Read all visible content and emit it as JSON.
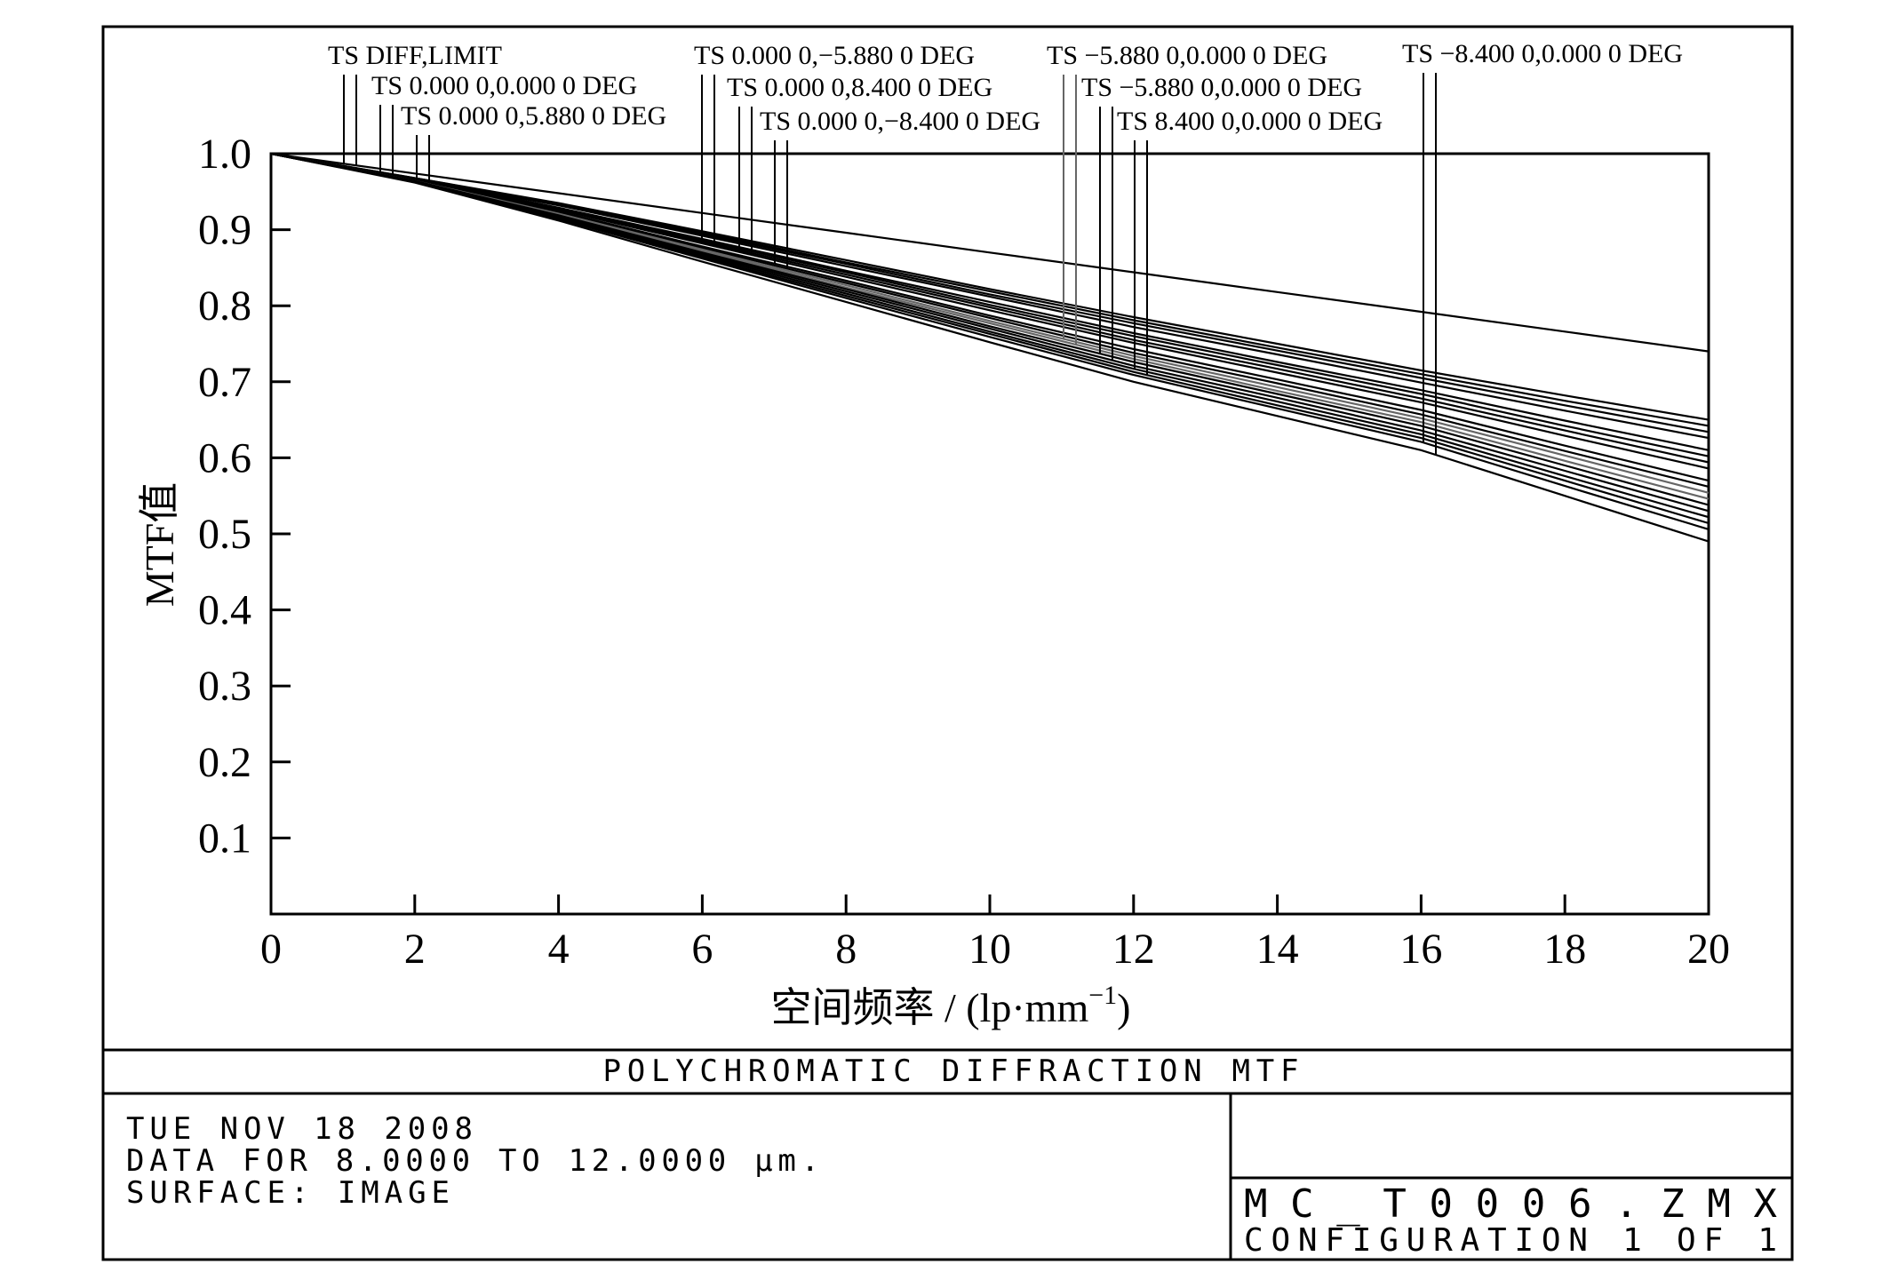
{
  "chart_data": {
    "type": "line",
    "y_label": "MTF值",
    "x_label": {
      "text": "空间频率 / (lp·mm",
      "superscript": "−1",
      "suffix": ")"
    },
    "x": [
      0,
      2,
      4,
      6,
      8,
      10,
      12,
      14,
      16,
      18,
      20
    ],
    "xlim": [
      0,
      20
    ],
    "xticks": [
      0,
      2,
      4,
      6,
      8,
      10,
      12,
      14,
      16,
      18,
      20
    ],
    "ylim": [
      0,
      1
    ],
    "yticks": [
      0.1,
      0.2,
      0.3,
      0.4,
      0.5,
      0.6,
      0.7,
      0.8,
      0.9,
      {
        "value": 1,
        "label": "1.0"
      }
    ],
    "series": [
      {
        "name": "TS DIFF,LIMIT",
        "color": "#000000",
        "values": [
          1,
          0.974,
          0.948,
          0.922,
          0.896,
          0.87,
          0.844,
          0.818,
          0.792,
          0.766,
          0.74
        ]
      },
      {
        "name": "TS 0.000 0,0.000 0 DEG",
        "color": "#000000",
        "tangential": [
          1,
          0.968,
          0.935,
          0.898,
          0.86,
          0.822,
          0.785,
          0.75,
          0.715,
          0.682,
          0.65
        ],
        "sagittal": [
          1,
          0.968,
          0.934,
          0.896,
          0.857,
          0.819,
          0.781,
          0.745,
          0.71,
          0.675,
          0.642
        ]
      },
      {
        "name": "TS 0.000 0,5.880 0 DEG",
        "color": "#000000",
        "tangential": [
          1,
          0.967,
          0.933,
          0.894,
          0.855,
          0.815,
          0.777,
          0.741,
          0.705,
          0.669,
          0.634
        ],
        "sagittal": [
          1,
          0.967,
          0.932,
          0.892,
          0.852,
          0.812,
          0.772,
          0.736,
          0.699,
          0.662,
          0.626
        ]
      },
      {
        "name": "TS 0.000 0,−5.880 0 DEG",
        "color": "#000000",
        "tangential": [
          1,
          0.967,
          0.929,
          0.888,
          0.846,
          0.805,
          0.764,
          0.726,
          0.689,
          0.649,
          0.61
        ],
        "sagittal": [
          1,
          0.966,
          0.928,
          0.886,
          0.844,
          0.801,
          0.76,
          0.722,
          0.684,
          0.642,
          0.602
        ]
      },
      {
        "name": "TS 0.000 0,8.400 0 DEG",
        "color": "#000000",
        "tangential": [
          1,
          0.966,
          0.927,
          0.884,
          0.841,
          0.798,
          0.755,
          0.717,
          0.678,
          0.636,
          0.594
        ],
        "sagittal": [
          1,
          0.966,
          0.926,
          0.882,
          0.838,
          0.794,
          0.751,
          0.712,
          0.673,
          0.629,
          0.586
        ]
      },
      {
        "name": "TS 0.000 0,−8.400 0 DEG",
        "color": "#000000",
        "tangential": [
          1,
          0.965,
          0.924,
          0.878,
          0.833,
          0.787,
          0.743,
          0.703,
          0.663,
          0.616,
          0.57
        ],
        "sagittal": [
          1,
          0.965,
          0.922,
          0.876,
          0.83,
          0.784,
          0.738,
          0.698,
          0.657,
          0.609,
          0.562
        ]
      },
      {
        "name": "TS −5.880 0,0.000 0 DEG",
        "color": "#666666",
        "tangential": [
          1,
          0.964,
          0.921,
          0.874,
          0.827,
          0.78,
          0.734,
          0.693,
          0.652,
          0.603,
          0.554
        ],
        "sagittal": [
          1,
          0.964,
          0.92,
          0.872,
          0.824,
          0.777,
          0.73,
          0.688,
          0.647,
          0.596,
          0.546
        ]
      },
      {
        "name": "TS −5.880 0,0.000 0 DEG",
        "color": "#000000",
        "tangential": [
          1,
          0.964,
          0.919,
          0.87,
          0.822,
          0.773,
          0.726,
          0.684,
          0.642,
          0.59,
          0.538
        ],
        "sagittal": [
          1,
          0.964,
          0.918,
          0.868,
          0.819,
          0.77,
          0.721,
          0.679,
          0.636,
          0.583,
          0.53
        ]
      },
      {
        "name": "TS 8.400 0,0.000 0 DEG",
        "color": "#000000",
        "tangential": [
          1,
          0.963,
          0.917,
          0.866,
          0.816,
          0.766,
          0.717,
          0.674,
          0.631,
          0.576,
          0.522
        ],
        "sagittal": [
          1,
          0.963,
          0.915,
          0.864,
          0.813,
          0.763,
          0.713,
          0.669,
          0.626,
          0.57,
          0.514
        ]
      },
      {
        "name": "TS −8.400 0,0.000 0 DEG",
        "color": "#000000",
        "tangential": [
          1,
          0.963,
          0.914,
          0.862,
          0.81,
          0.759,
          0.709,
          0.665,
          0.621,
          0.563,
          0.506
        ],
        "sagittal": [
          1,
          0.962,
          0.912,
          0.858,
          0.805,
          0.752,
          0.7,
          0.655,
          0.61,
          0.55,
          0.49
        ]
      }
    ]
  },
  "footer": {
    "title": "POLYCHROMATIC DIFFRACTION MTF",
    "date": "TUE NOV 18 2008",
    "data_range": "DATA FOR 8.0000 TO 12.0000 µm.",
    "surface": "SURFACE: IMAGE",
    "file": "MC_T0006.ZMX",
    "configuration": "CONFIGURATION 1 OF 1"
  }
}
